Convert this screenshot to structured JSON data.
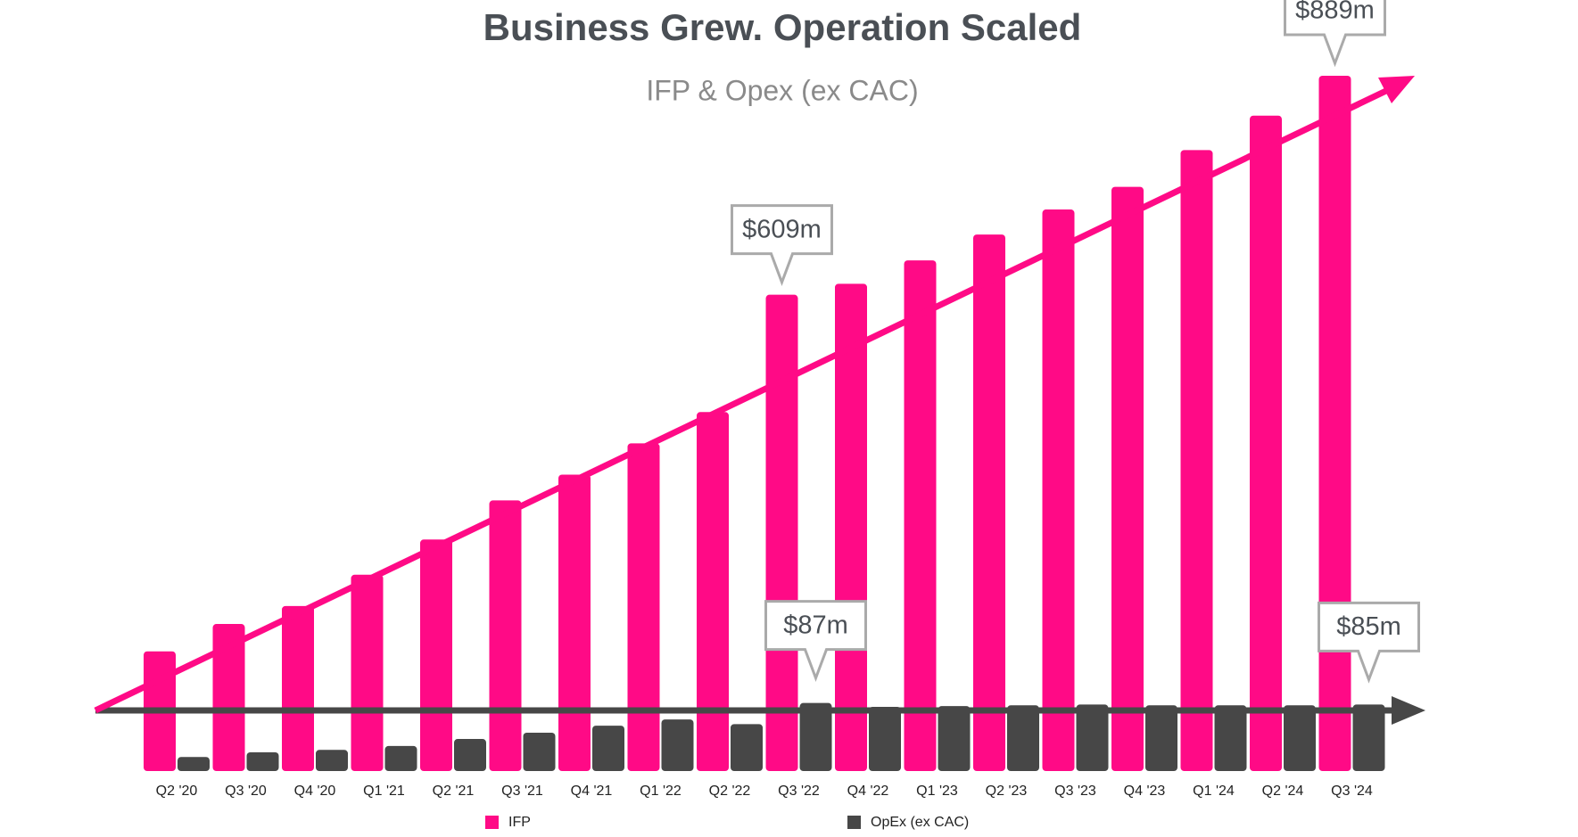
{
  "chart_data": {
    "type": "bar",
    "title": "Business Grew. Operation Scaled",
    "subtitle": "IFP & Opex (ex CAC)",
    "categories": [
      "Q2 '20",
      "Q3 '20",
      "Q4 '20",
      "Q1 '21",
      "Q2 '21",
      "Q3 '21",
      "Q4 '21",
      "Q1 '22",
      "Q2 '22",
      "Q3 '22",
      "Q4 '22",
      "Q1 '23",
      "Q2 '23",
      "Q3 '23",
      "Q4 '23",
      "Q1 '24",
      "Q2 '24",
      "Q3 '24"
    ],
    "series": [
      {
        "name": "IFP",
        "color": "#ff0a86",
        "values": [
          153,
          188,
          211,
          251,
          296,
          346,
          379,
          419,
          459,
          609,
          623,
          653,
          686,
          718,
          747,
          794,
          838,
          889
        ],
        "value_labels": [
          null,
          null,
          null,
          null,
          null,
          null,
          null,
          null,
          null,
          "$609m",
          null,
          null,
          null,
          null,
          null,
          null,
          null,
          "$889m"
        ]
      },
      {
        "name": "OpEx (ex CAC)",
        "color": "#474747",
        "values": [
          18,
          24,
          27,
          32,
          41,
          49,
          58,
          66,
          60,
          87,
          82,
          83,
          84,
          85,
          84,
          84,
          84,
          85
        ],
        "value_labels": [
          null,
          null,
          null,
          null,
          null,
          null,
          null,
          null,
          null,
          "$87m",
          null,
          null,
          null,
          null,
          null,
          null,
          null,
          "$85m"
        ]
      }
    ]
  }
}
